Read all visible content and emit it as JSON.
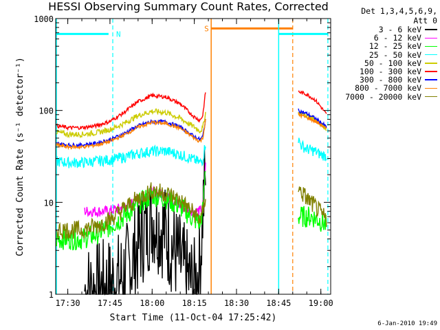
{
  "chart_data": {
    "type": "line",
    "title": "HESSI Observing Summary Count Rates, Corrected",
    "xlabel": "Start Time (11-Oct-04 17:25:42)",
    "ylabel": "Corrected Count Rate (s⁻¹ detector⁻¹)",
    "yscale": "log",
    "ylim": [
      1,
      1000
    ],
    "xlim": [
      "17:25:42",
      "19:03:30"
    ],
    "x_ticks": [
      "17:30",
      "17:45",
      "18:00",
      "18:15",
      "18:30",
      "18:45",
      "19:00"
    ],
    "y_ticks": [
      "1",
      "10",
      "100",
      "1000"
    ],
    "grid": false,
    "legend_position": "right",
    "legend_header": [
      "Det 1,3,4,5,6,9,",
      "Att 0"
    ],
    "series": [
      {
        "name": "3 - 6 keV",
        "color": "#000000",
        "segments": [
          {
            "x": [
              "17:36",
              "17:40",
              "17:44",
              "17:48",
              "17:52",
              "17:56",
              "18:00",
              "18:04",
              "18:08",
              "18:12",
              "18:15",
              "18:17",
              "18:18",
              "18:19"
            ],
            "y": [
              1.1,
              1.1,
              1.2,
              1.4,
              2.0,
              4.0,
              7.0,
              5.0,
              3.0,
              1.6,
              1.2,
              2.0,
              8.0,
              20.0
            ]
          }
        ]
      },
      {
        "name": "6 - 12 keV",
        "color": "#ff00ff",
        "segments": [
          {
            "x": [
              "17:36",
              "17:40",
              "17:44",
              "17:48",
              "17:52",
              "17:56",
              "18:00",
              "18:04",
              "18:08",
              "18:12",
              "18:15",
              "18:17",
              "18:18",
              "18:19"
            ],
            "y": [
              8.0,
              8.0,
              8.0,
              8.5,
              9.5,
              11.0,
              13.0,
              12.0,
              10.0,
              8.5,
              8.0,
              8.0,
              9.0,
              25.0
            ]
          }
        ]
      },
      {
        "name": "12 - 25 keV",
        "color": "#00ff00",
        "segments": [
          {
            "x": [
              "17:26",
              "17:30",
              "17:35",
              "17:40",
              "17:45",
              "17:50",
              "17:55",
              "18:00",
              "18:05",
              "18:10",
              "18:15",
              "18:17",
              "18:18",
              "18:19"
            ],
            "y": [
              4.0,
              4.0,
              4.0,
              4.5,
              5.5,
              7.0,
              9.5,
              12.0,
              11.0,
              9.0,
              6.5,
              6.0,
              8.0,
              25.0
            ]
          },
          {
            "x": [
              "18:52",
              "18:55",
              "18:57",
              "19:01",
              "19:02"
            ],
            "y": [
              7.0,
              7.0,
              7.0,
              6.0,
              5.5
            ]
          }
        ]
      },
      {
        "name": "25 - 50 keV",
        "color": "#00ffff",
        "segments": [
          {
            "x": [
              "17:26",
              "17:30",
              "17:35",
              "17:40",
              "17:45",
              "17:50",
              "17:55",
              "18:00",
              "18:05",
              "18:10",
              "18:15",
              "18:17",
              "18:18",
              "18:19"
            ],
            "y": [
              28,
              27,
              27,
              28,
              29,
              31,
              34,
              36,
              36,
              33,
              29,
              27,
              29,
              45
            ]
          },
          {
            "x": [
              "18:52",
              "18:53",
              "18:55",
              "18:58",
              "19:00",
              "19:02"
            ],
            "y": [
              48,
              42,
              38,
              36,
              33,
              32
            ]
          }
        ]
      },
      {
        "name": "50 - 100 keV",
        "color": "#cccc00",
        "segments": [
          {
            "x": [
              "17:26",
              "17:30",
              "17:35",
              "17:40",
              "17:45",
              "17:50",
              "17:55",
              "18:00",
              "18:05",
              "18:10",
              "18:15",
              "18:17",
              "18:18",
              "18:19"
            ],
            "y": [
              58,
              55,
              55,
              57,
              62,
              72,
              88,
              98,
              95,
              82,
              66,
              60,
              64,
              95
            ]
          },
          {
            "x": [
              "18:52",
              "18:55",
              "18:58",
              "19:00",
              "19:02"
            ],
            "y": [
              95,
              88,
              80,
              72,
              64
            ]
          }
        ]
      },
      {
        "name": "100 - 300 keV",
        "color": "#ff0000",
        "segments": [
          {
            "x": [
              "17:26",
              "17:30",
              "17:35",
              "17:40",
              "17:45",
              "17:50",
              "17:55",
              "18:00",
              "18:05",
              "18:10",
              "18:15",
              "18:17",
              "18:18",
              "18:19"
            ],
            "y": [
              68,
              65,
              65,
              68,
              76,
              95,
              125,
              145,
              140,
              118,
              85,
              78,
              88,
              160
            ]
          },
          {
            "x": [
              "18:52",
              "18:55",
              "18:58",
              "19:00",
              "19:02"
            ],
            "y": [
              160,
              150,
              130,
              110,
              90
            ]
          }
        ]
      },
      {
        "name": "300 - 800 keV",
        "color": "#0000ff",
        "segments": [
          {
            "x": [
              "17:26",
              "17:30",
              "17:35",
              "17:40",
              "17:45",
              "17:50",
              "17:55",
              "18:00",
              "18:05",
              "18:10",
              "18:15",
              "18:17",
              "18:18",
              "18:19"
            ],
            "y": [
              44,
              42,
              42,
              44,
              48,
              56,
              68,
              76,
              75,
              66,
              52,
              48,
              52,
              80
            ]
          },
          {
            "x": [
              "18:52",
              "18:55",
              "18:58",
              "19:00",
              "19:02"
            ],
            "y": [
              100,
              92,
              82,
              74,
              66
            ]
          }
        ]
      },
      {
        "name": "800 - 7000 keV",
        "color": "#ff8000",
        "segments": [
          {
            "x": [
              "17:26",
              "17:30",
              "17:35",
              "17:40",
              "17:45",
              "17:50",
              "17:55",
              "18:00",
              "18:05",
              "18:10",
              "18:15",
              "18:17",
              "18:18",
              "18:19"
            ],
            "y": [
              42,
              40,
              40,
              42,
              46,
              54,
              66,
              74,
              72,
              64,
              50,
              46,
              50,
              78
            ]
          },
          {
            "x": [
              "18:52",
              "18:55",
              "18:58",
              "19:00",
              "19:02"
            ],
            "y": [
              90,
              84,
              76,
              70,
              62
            ]
          }
        ]
      },
      {
        "name": "7000 - 20000 keV",
        "color": "#808000",
        "segments": [
          {
            "x": [
              "17:26",
              "17:30",
              "17:35",
              "17:40",
              "17:45",
              "17:50",
              "17:55",
              "18:00",
              "18:05",
              "18:10",
              "18:15",
              "18:17",
              "18:18",
              "18:19"
            ],
            "y": [
              5.0,
              5.0,
              5.0,
              5.5,
              6.5,
              8.5,
              11.0,
              13.5,
              12.5,
              10.5,
              7.5,
              6.5,
              7.5,
              12.0
            ]
          },
          {
            "x": [
              "18:52",
              "18:55",
              "18:58",
              "19:00",
              "19:02"
            ],
            "y": [
              14,
              11,
              9,
              7.5,
              6.5
            ]
          }
        ]
      }
    ],
    "annotations": [
      {
        "label": "N",
        "color": "#00ffff",
        "bar": [
          "17:25:42",
          "17:44:30"
        ],
        "y": 680,
        "dashed_line": "17:46"
      },
      {
        "label": "S",
        "color": "#ff8000",
        "bar": [
          "18:21",
          "18:50"
        ],
        "y": 780,
        "solid_line": "18:21",
        "dashed_line": "18:50"
      },
      {
        "label": "",
        "color": "#00ffff",
        "bar": [
          "18:45",
          "19:02:30"
        ],
        "y": 680,
        "solid_line": "18:45",
        "dashed_line": "19:02:30"
      }
    ]
  },
  "footer": {
    "timestamp": "6-Jan-2010 19:49"
  }
}
